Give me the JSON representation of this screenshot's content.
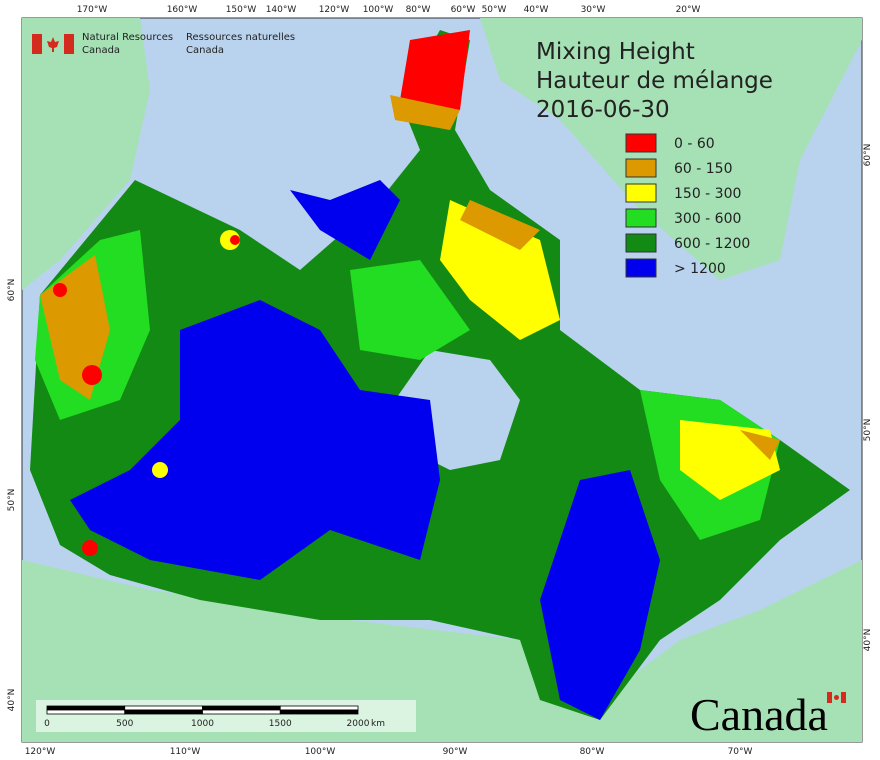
{
  "agency": {
    "en": [
      "Natural Resources",
      "Canada"
    ],
    "fr": [
      "Ressources naturelles",
      "Canada"
    ]
  },
  "title": [
    "Mixing Height",
    "Hauteur de mélange",
    "2016-06-30"
  ],
  "legend": [
    {
      "label": "0 - 60",
      "color": "#ff0000"
    },
    {
      "label": "60 - 150",
      "color": "#dd9a00"
    },
    {
      "label": "150 - 300",
      "color": "#ffff00"
    },
    {
      "label": "300 - 600",
      "color": "#22dd22"
    },
    {
      "label": "600 - 1200",
      "color": "#138a13"
    },
    {
      "label": "> 1200",
      "color": "#0000ee"
    }
  ],
  "graticule": {
    "top": [
      "170°W",
      "160°W",
      "150°W",
      "140°W",
      "120°W",
      "100°W",
      "80°W",
      "60°W",
      "50°W",
      "40°W",
      "30°W",
      "20°W"
    ],
    "bottom": [
      "120°W",
      "110°W",
      "100°W",
      "90°W",
      "80°W",
      "70°W"
    ],
    "left": [
      "60°N",
      "50°N",
      "40°N"
    ],
    "right": [
      "60°N",
      "50°N",
      "40°N"
    ]
  },
  "scale_bar": {
    "ticks": [
      0,
      500,
      1000,
      1500,
      2000
    ],
    "unit": "km"
  },
  "wordmark": "Canada"
}
